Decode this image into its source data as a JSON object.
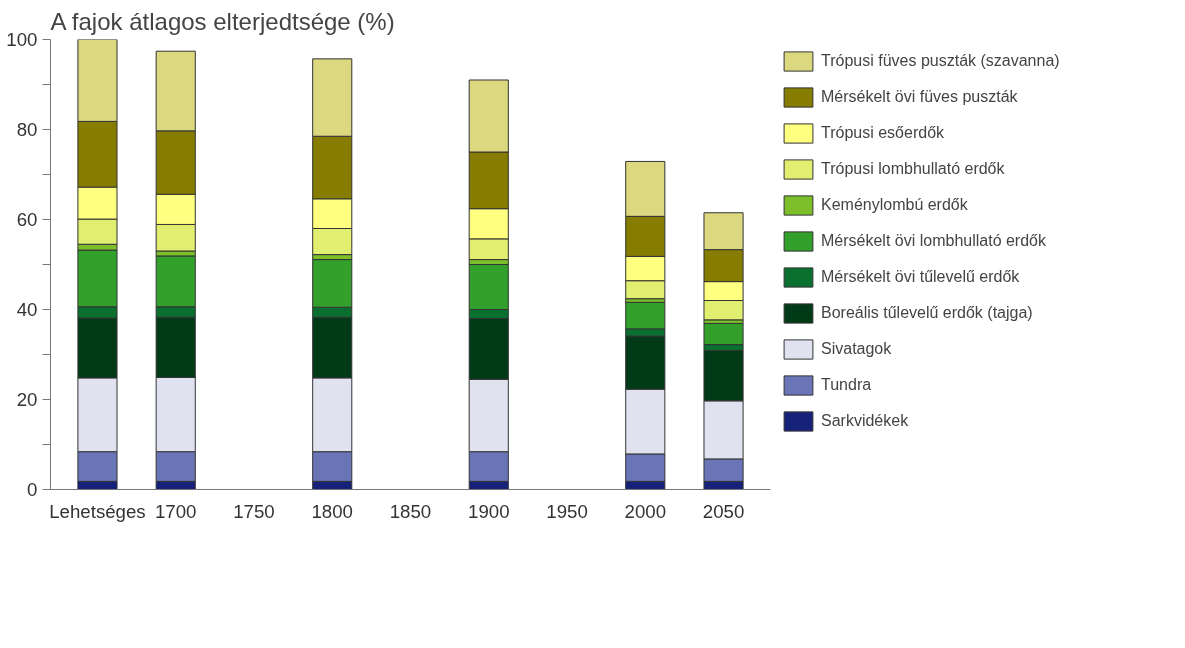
{
  "chart_data": {
    "type": "bar",
    "stacked": true,
    "title": "A fajok átlagos elterjedtsége (%)",
    "categories": [
      "Lehetséges",
      "1700",
      "1750",
      "1800",
      "1850",
      "1900",
      "1950",
      "2000",
      "2050"
    ],
    "ylim": [
      0,
      100
    ],
    "yticks": [
      0,
      {
        "value": 10,
        "label": null
      },
      20,
      {
        "value": 30,
        "label": null
      },
      40,
      {
        "value": 50,
        "label": null
      },
      60,
      {
        "value": 70,
        "label": null
      },
      80,
      {
        "value": 90,
        "label": null
      },
      100
    ],
    "grid": false,
    "legend": "right",
    "series": [
      {
        "name": "Sarkvidékek",
        "color": "#16217a",
        "values": [
          1.8,
          1.8,
          null,
          1.8,
          null,
          1.8,
          null,
          1.8,
          1.8
        ]
      },
      {
        "name": "Tundra",
        "color": "#6a75b8",
        "values": [
          6.6,
          6.6,
          null,
          6.6,
          null,
          6.6,
          null,
          6.1,
          5.0
        ]
      },
      {
        "name": "Sivatagok",
        "color": "#e0e2f0",
        "values": [
          16.4,
          16.5,
          null,
          16.4,
          null,
          16.1,
          null,
          14.4,
          12.9
        ]
      },
      {
        "name": "Boreális tűlevelű erdők (tajga)",
        "color": "#003a17",
        "values": [
          13.3,
          13.4,
          null,
          13.5,
          null,
          13.5,
          null,
          11.8,
          11.2
        ]
      },
      {
        "name": "Mérsékelt övi tűlevelű erdők",
        "color": "#0a7030",
        "values": [
          2.5,
          2.3,
          null,
          2.2,
          null,
          2.0,
          null,
          1.6,
          1.3
        ]
      },
      {
        "name": "Mérsékelt övi lombhullató erdők",
        "color": "#33a02c",
        "values": [
          12.6,
          11.3,
          null,
          10.6,
          null,
          10.0,
          null,
          5.9,
          4.7
        ]
      },
      {
        "name": "Keménylombú erdők",
        "color": "#7cbf2a",
        "values": [
          1.3,
          1.1,
          null,
          1.1,
          null,
          1.1,
          null,
          0.8,
          0.8
        ]
      },
      {
        "name": "Trópusi lombhullató erdők",
        "color": "#e0ef70",
        "values": [
          5.6,
          5.9,
          null,
          5.8,
          null,
          4.6,
          null,
          4.0,
          4.3
        ]
      },
      {
        "name": "Trópusi esőerdők",
        "color": "#ffff80",
        "values": [
          7.1,
          6.7,
          null,
          6.6,
          null,
          6.7,
          null,
          5.4,
          4.2
        ]
      },
      {
        "name": "Mérsékelt övi füves puszták",
        "color": "#857c00",
        "values": [
          14.6,
          14.1,
          null,
          13.9,
          null,
          12.6,
          null,
          8.9,
          7.1
        ]
      },
      {
        "name": "Trópusi füves puszták (szavanna)",
        "color": "#dcd880",
        "values": [
          18.2,
          17.7,
          null,
          17.2,
          null,
          16.0,
          null,
          12.2,
          8.2
        ]
      }
    ]
  }
}
